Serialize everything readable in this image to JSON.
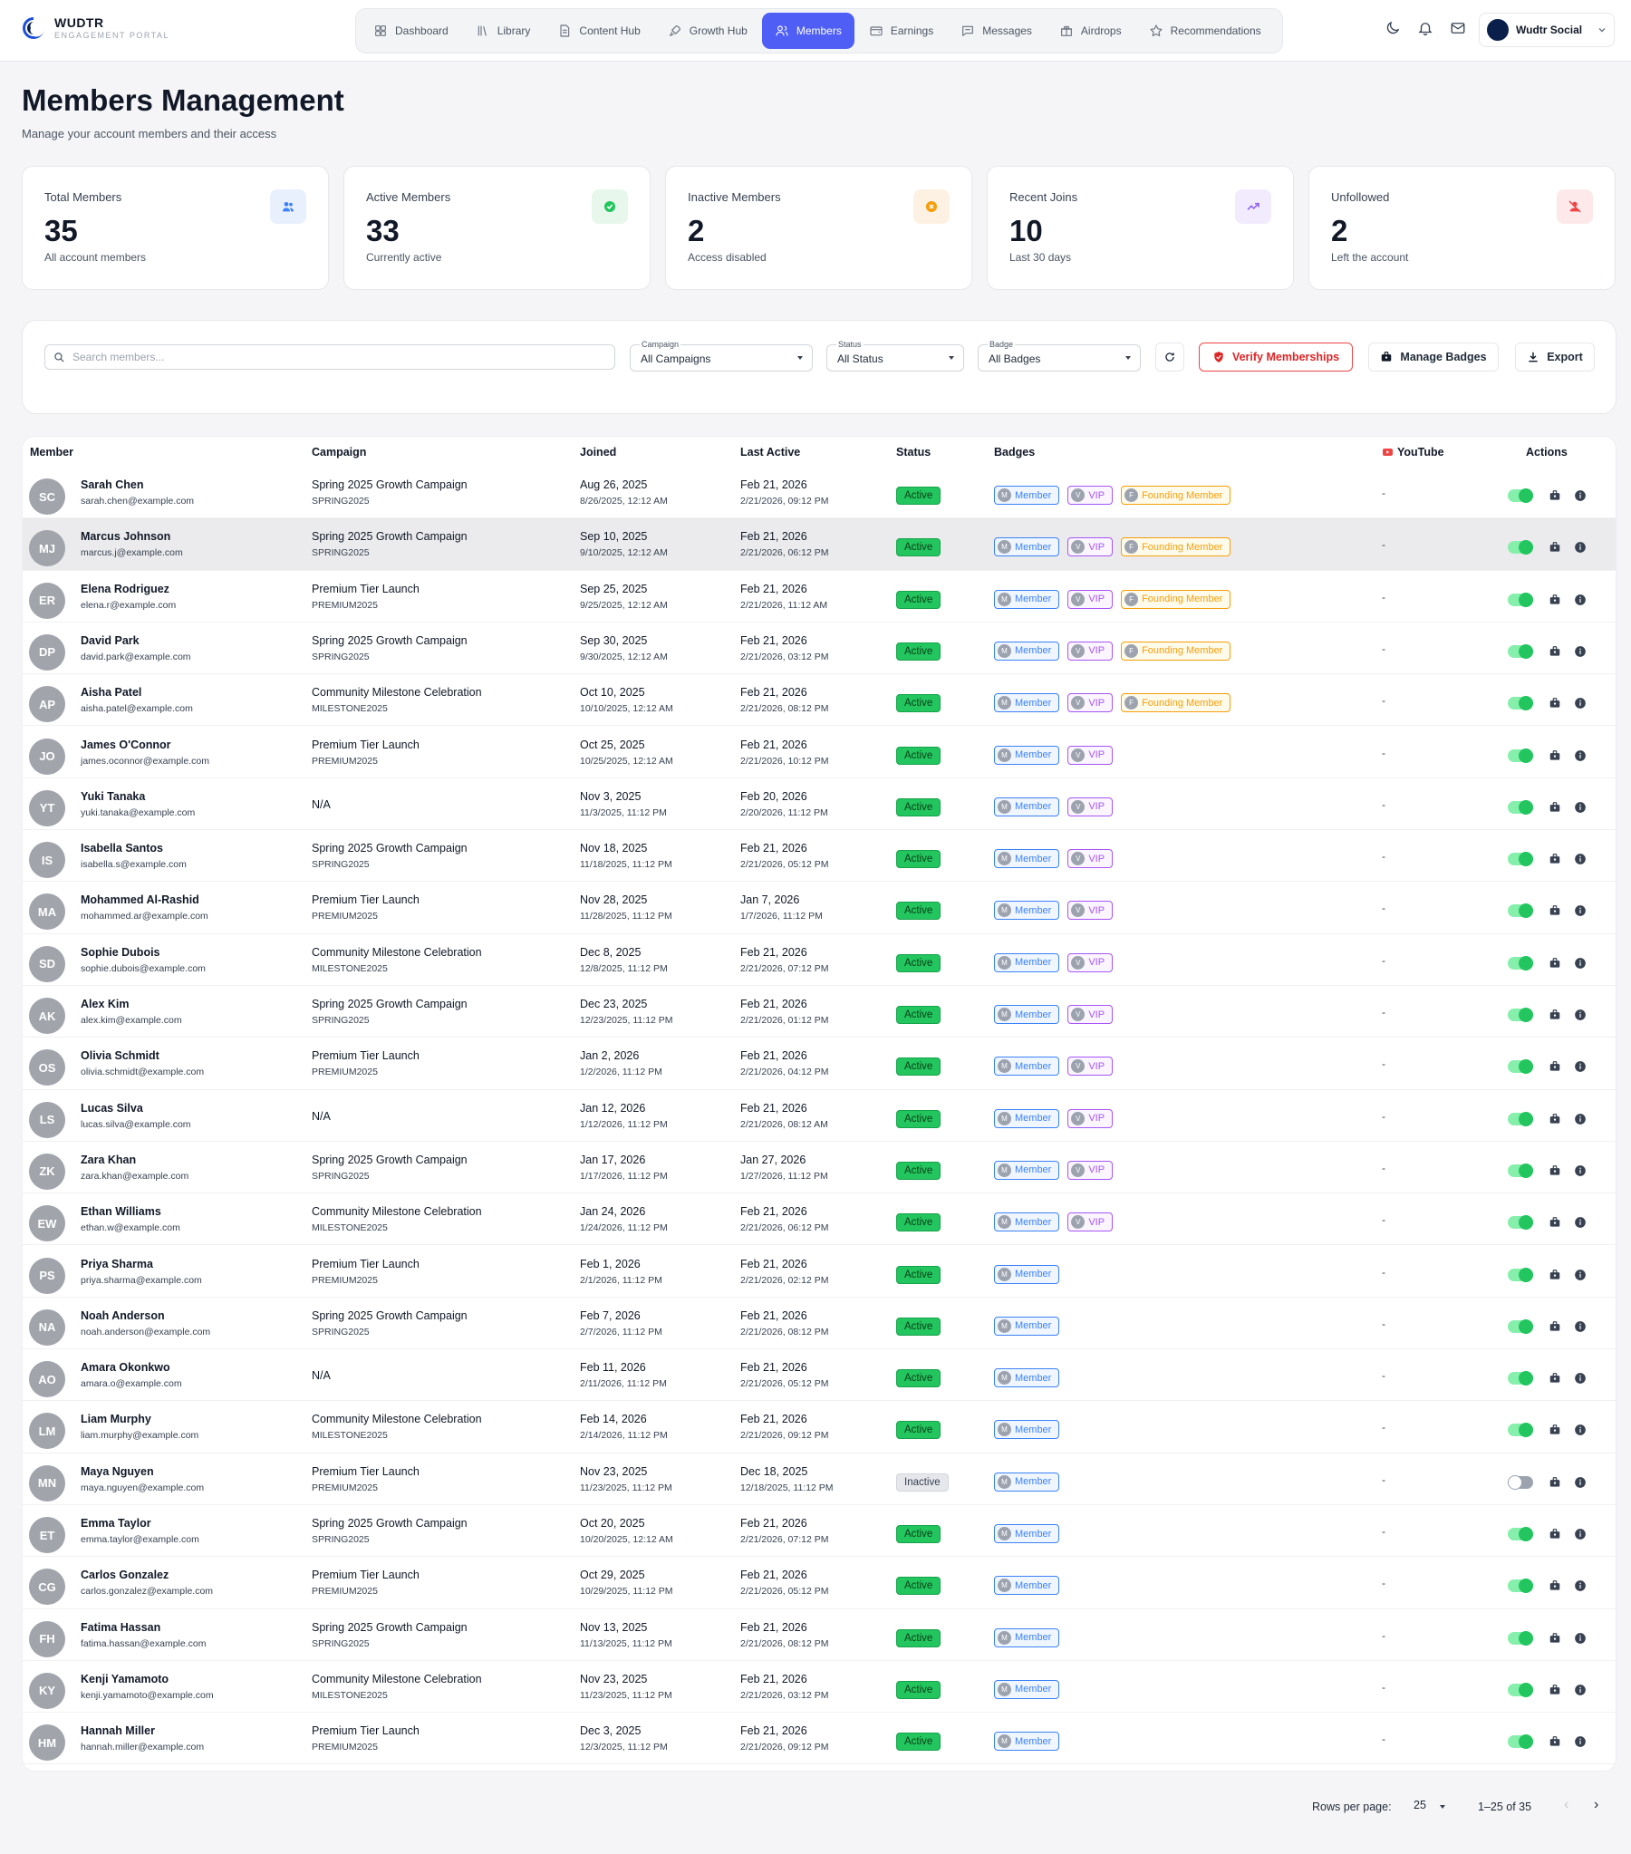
{
  "brand": {
    "name": "WUDTR",
    "subtitle": "ENGAGEMENT PORTAL"
  },
  "nav": [
    {
      "label": "Dashboard",
      "icon": "grid-icon",
      "active": false
    },
    {
      "label": "Library",
      "icon": "library-icon",
      "active": false
    },
    {
      "label": "Content Hub",
      "icon": "document-icon",
      "active": false
    },
    {
      "label": "Growth Hub",
      "icon": "rocket-icon",
      "active": false
    },
    {
      "label": "Members",
      "icon": "users-icon",
      "active": true
    },
    {
      "label": "Earnings",
      "icon": "wallet-icon",
      "active": false
    },
    {
      "label": "Messages",
      "icon": "chat-icon",
      "active": false
    },
    {
      "label": "Airdrops",
      "icon": "gift-icon",
      "active": false
    },
    {
      "label": "Recommendations",
      "icon": "star-icon",
      "active": false
    }
  ],
  "profile": {
    "name": "Wudtr Social"
  },
  "page": {
    "title": "Members Management",
    "subtitle": "Manage your account members and their access"
  },
  "stats": [
    {
      "label": "Total Members",
      "value": "35",
      "desc": "All account members",
      "icon": "users-icon",
      "bg": "#e8effd",
      "fg": "#3b82f6"
    },
    {
      "label": "Active Members",
      "value": "33",
      "desc": "Currently active",
      "icon": "check-circle-icon",
      "bg": "#e7f7ec",
      "fg": "#22c55e"
    },
    {
      "label": "Inactive Members",
      "value": "2",
      "desc": "Access disabled",
      "icon": "x-circle-icon",
      "bg": "#fdf1e3",
      "fg": "#f59e0b"
    },
    {
      "label": "Recent Joins",
      "value": "10",
      "desc": "Last 30 days",
      "icon": "trending-up-icon",
      "bg": "#f1ebfd",
      "fg": "#8b5cf6"
    },
    {
      "label": "Unfollowed",
      "value": "2",
      "desc": "Left the account",
      "icon": "user-off-icon",
      "bg": "#fde8ea",
      "fg": "#ef4444"
    }
  ],
  "filters": {
    "search_placeholder": "Search members...",
    "campaign": {
      "label": "Campaign",
      "value": "All Campaigns"
    },
    "status": {
      "label": "Status",
      "value": "All Status"
    },
    "badge": {
      "label": "Badge",
      "value": "All Badges"
    },
    "verify_label": "Verify Memberships",
    "manage_badges_label": "Manage Badges",
    "export_label": "Export"
  },
  "table": {
    "headers": {
      "member": "Member",
      "campaign": "Campaign",
      "joined": "Joined",
      "last_active": "Last Active",
      "status": "Status",
      "badges": "Badges",
      "youtube": "YouTube",
      "actions": "Actions"
    },
    "badge_labels": {
      "member": "Member",
      "vip": "VIP",
      "founder": "Founding Member"
    },
    "rows": [
      {
        "initials": "SC",
        "name": "Sarah Chen",
        "email": "sarah.chen@example.com",
        "campaign": "Spring 2025 Growth Campaign",
        "code": "SPRING2025",
        "joined": "Aug 26, 2025",
        "joined_full": "8/26/2025, 12:12 AM",
        "last": "Feb 21, 2026",
        "last_full": "2/21/2026, 09:12 PM",
        "status": "Active",
        "badges": [
          "member",
          "vip",
          "founder"
        ],
        "youtube": "-",
        "enabled": true
      },
      {
        "initials": "MJ",
        "name": "Marcus Johnson",
        "email": "marcus.j@example.com",
        "campaign": "Spring 2025 Growth Campaign",
        "code": "SPRING2025",
        "joined": "Sep 10, 2025",
        "joined_full": "9/10/2025, 12:12 AM",
        "last": "Feb 21, 2026",
        "last_full": "2/21/2026, 06:12 PM",
        "status": "Active",
        "badges": [
          "member",
          "vip",
          "founder"
        ],
        "youtube": "-",
        "enabled": true
      },
      {
        "initials": "ER",
        "name": "Elena Rodriguez",
        "email": "elena.r@example.com",
        "campaign": "Premium Tier Launch",
        "code": "PREMIUM2025",
        "joined": "Sep 25, 2025",
        "joined_full": "9/25/2025, 12:12 AM",
        "last": "Feb 21, 2026",
        "last_full": "2/21/2026, 11:12 AM",
        "status": "Active",
        "badges": [
          "member",
          "vip",
          "founder"
        ],
        "youtube": "-",
        "enabled": true
      },
      {
        "initials": "DP",
        "name": "David Park",
        "email": "david.park@example.com",
        "campaign": "Spring 2025 Growth Campaign",
        "code": "SPRING2025",
        "joined": "Sep 30, 2025",
        "joined_full": "9/30/2025, 12:12 AM",
        "last": "Feb 21, 2026",
        "last_full": "2/21/2026, 03:12 PM",
        "status": "Active",
        "badges": [
          "member",
          "vip",
          "founder"
        ],
        "youtube": "-",
        "enabled": true
      },
      {
        "initials": "AP",
        "name": "Aisha Patel",
        "email": "aisha.patel@example.com",
        "campaign": "Community Milestone Celebration",
        "code": "MILESTONE2025",
        "joined": "Oct 10, 2025",
        "joined_full": "10/10/2025, 12:12 AM",
        "last": "Feb 21, 2026",
        "last_full": "2/21/2026, 08:12 PM",
        "status": "Active",
        "badges": [
          "member",
          "vip",
          "founder"
        ],
        "youtube": "-",
        "enabled": true
      },
      {
        "initials": "JO",
        "name": "James O'Connor",
        "email": "james.oconnor@example.com",
        "campaign": "Premium Tier Launch",
        "code": "PREMIUM2025",
        "joined": "Oct 25, 2025",
        "joined_full": "10/25/2025, 12:12 AM",
        "last": "Feb 21, 2026",
        "last_full": "2/21/2026, 10:12 PM",
        "status": "Active",
        "badges": [
          "member",
          "vip"
        ],
        "youtube": "-",
        "enabled": true
      },
      {
        "initials": "YT",
        "name": "Yuki Tanaka",
        "email": "yuki.tanaka@example.com",
        "campaign": "N/A",
        "code": "",
        "joined": "Nov 3, 2025",
        "joined_full": "11/3/2025, 11:12 PM",
        "last": "Feb 20, 2026",
        "last_full": "2/20/2026, 11:12 PM",
        "status": "Active",
        "badges": [
          "member",
          "vip"
        ],
        "youtube": "-",
        "enabled": true
      },
      {
        "initials": "IS",
        "name": "Isabella Santos",
        "email": "isabella.s@example.com",
        "campaign": "Spring 2025 Growth Campaign",
        "code": "SPRING2025",
        "joined": "Nov 18, 2025",
        "joined_full": "11/18/2025, 11:12 PM",
        "last": "Feb 21, 2026",
        "last_full": "2/21/2026, 05:12 PM",
        "status": "Active",
        "badges": [
          "member",
          "vip"
        ],
        "youtube": "-",
        "enabled": true
      },
      {
        "initials": "MA",
        "name": "Mohammed Al-Rashid",
        "email": "mohammed.ar@example.com",
        "campaign": "Premium Tier Launch",
        "code": "PREMIUM2025",
        "joined": "Nov 28, 2025",
        "joined_full": "11/28/2025, 11:12 PM",
        "last": "Jan 7, 2026",
        "last_full": "1/7/2026, 11:12 PM",
        "status": "Active",
        "badges": [
          "member",
          "vip"
        ],
        "youtube": "-",
        "enabled": true
      },
      {
        "initials": "SD",
        "name": "Sophie Dubois",
        "email": "sophie.dubois@example.com",
        "campaign": "Community Milestone Celebration",
        "code": "MILESTONE2025",
        "joined": "Dec 8, 2025",
        "joined_full": "12/8/2025, 11:12 PM",
        "last": "Feb 21, 2026",
        "last_full": "2/21/2026, 07:12 PM",
        "status": "Active",
        "badges": [
          "member",
          "vip"
        ],
        "youtube": "-",
        "enabled": true
      },
      {
        "initials": "AK",
        "name": "Alex Kim",
        "email": "alex.kim@example.com",
        "campaign": "Spring 2025 Growth Campaign",
        "code": "SPRING2025",
        "joined": "Dec 23, 2025",
        "joined_full": "12/23/2025, 11:12 PM",
        "last": "Feb 21, 2026",
        "last_full": "2/21/2026, 01:12 PM",
        "status": "Active",
        "badges": [
          "member",
          "vip"
        ],
        "youtube": "-",
        "enabled": true
      },
      {
        "initials": "OS",
        "name": "Olivia Schmidt",
        "email": "olivia.schmidt@example.com",
        "campaign": "Premium Tier Launch",
        "code": "PREMIUM2025",
        "joined": "Jan 2, 2026",
        "joined_full": "1/2/2026, 11:12 PM",
        "last": "Feb 21, 2026",
        "last_full": "2/21/2026, 04:12 PM",
        "status": "Active",
        "badges": [
          "member",
          "vip"
        ],
        "youtube": "-",
        "enabled": true
      },
      {
        "initials": "LS",
        "name": "Lucas Silva",
        "email": "lucas.silva@example.com",
        "campaign": "N/A",
        "code": "",
        "joined": "Jan 12, 2026",
        "joined_full": "1/12/2026, 11:12 PM",
        "last": "Feb 21, 2026",
        "last_full": "2/21/2026, 08:12 AM",
        "status": "Active",
        "badges": [
          "member",
          "vip"
        ],
        "youtube": "-",
        "enabled": true
      },
      {
        "initials": "ZK",
        "name": "Zara Khan",
        "email": "zara.khan@example.com",
        "campaign": "Spring 2025 Growth Campaign",
        "code": "SPRING2025",
        "joined": "Jan 17, 2026",
        "joined_full": "1/17/2026, 11:12 PM",
        "last": "Jan 27, 2026",
        "last_full": "1/27/2026, 11:12 PM",
        "status": "Active",
        "badges": [
          "member",
          "vip"
        ],
        "youtube": "-",
        "enabled": true
      },
      {
        "initials": "EW",
        "name": "Ethan Williams",
        "email": "ethan.w@example.com",
        "campaign": "Community Milestone Celebration",
        "code": "MILESTONE2025",
        "joined": "Jan 24, 2026",
        "joined_full": "1/24/2026, 11:12 PM",
        "last": "Feb 21, 2026",
        "last_full": "2/21/2026, 06:12 PM",
        "status": "Active",
        "badges": [
          "member",
          "vip"
        ],
        "youtube": "-",
        "enabled": true
      },
      {
        "initials": "PS",
        "name": "Priya Sharma",
        "email": "priya.sharma@example.com",
        "campaign": "Premium Tier Launch",
        "code": "PREMIUM2025",
        "joined": "Feb 1, 2026",
        "joined_full": "2/1/2026, 11:12 PM",
        "last": "Feb 21, 2026",
        "last_full": "2/21/2026, 02:12 PM",
        "status": "Active",
        "badges": [
          "member"
        ],
        "youtube": "-",
        "enabled": true
      },
      {
        "initials": "NA",
        "name": "Noah Anderson",
        "email": "noah.anderson@example.com",
        "campaign": "Spring 2025 Growth Campaign",
        "code": "SPRING2025",
        "joined": "Feb 7, 2026",
        "joined_full": "2/7/2026, 11:12 PM",
        "last": "Feb 21, 2026",
        "last_full": "2/21/2026, 08:12 PM",
        "status": "Active",
        "badges": [
          "member"
        ],
        "youtube": "-",
        "enabled": true
      },
      {
        "initials": "AO",
        "name": "Amara Okonkwo",
        "email": "amara.o@example.com",
        "campaign": "N/A",
        "code": "",
        "joined": "Feb 11, 2026",
        "joined_full": "2/11/2026, 11:12 PM",
        "last": "Feb 21, 2026",
        "last_full": "2/21/2026, 05:12 PM",
        "status": "Active",
        "badges": [
          "member"
        ],
        "youtube": "-",
        "enabled": true
      },
      {
        "initials": "LM",
        "name": "Liam Murphy",
        "email": "liam.murphy@example.com",
        "campaign": "Community Milestone Celebration",
        "code": "MILESTONE2025",
        "joined": "Feb 14, 2026",
        "joined_full": "2/14/2026, 11:12 PM",
        "last": "Feb 21, 2026",
        "last_full": "2/21/2026, 09:12 PM",
        "status": "Active",
        "badges": [
          "member"
        ],
        "youtube": "-",
        "enabled": true
      },
      {
        "initials": "MN",
        "name": "Maya Nguyen",
        "email": "maya.nguyen@example.com",
        "campaign": "Premium Tier Launch",
        "code": "PREMIUM2025",
        "joined": "Nov 23, 2025",
        "joined_full": "11/23/2025, 11:12 PM",
        "last": "Dec 18, 2025",
        "last_full": "12/18/2025, 11:12 PM",
        "status": "Inactive",
        "badges": [
          "member"
        ],
        "youtube": "-",
        "enabled": false
      },
      {
        "initials": "ET",
        "name": "Emma Taylor",
        "email": "emma.taylor@example.com",
        "campaign": "Spring 2025 Growth Campaign",
        "code": "SPRING2025",
        "joined": "Oct 20, 2025",
        "joined_full": "10/20/2025, 12:12 AM",
        "last": "Feb 21, 2026",
        "last_full": "2/21/2026, 07:12 PM",
        "status": "Active",
        "badges": [
          "member"
        ],
        "youtube": "-",
        "enabled": true
      },
      {
        "initials": "CG",
        "name": "Carlos Gonzalez",
        "email": "carlos.gonzalez@example.com",
        "campaign": "Premium Tier Launch",
        "code": "PREMIUM2025",
        "joined": "Oct 29, 2025",
        "joined_full": "10/29/2025, 11:12 PM",
        "last": "Feb 21, 2026",
        "last_full": "2/21/2026, 05:12 PM",
        "status": "Active",
        "badges": [
          "member"
        ],
        "youtube": "-",
        "enabled": true
      },
      {
        "initials": "FH",
        "name": "Fatima Hassan",
        "email": "fatima.hassan@example.com",
        "campaign": "Spring 2025 Growth Campaign",
        "code": "SPRING2025",
        "joined": "Nov 13, 2025",
        "joined_full": "11/13/2025, 11:12 PM",
        "last": "Feb 21, 2026",
        "last_full": "2/21/2026, 08:12 PM",
        "status": "Active",
        "badges": [
          "member"
        ],
        "youtube": "-",
        "enabled": true
      },
      {
        "initials": "KY",
        "name": "Kenji Yamamoto",
        "email": "kenji.yamamoto@example.com",
        "campaign": "Community Milestone Celebration",
        "code": "MILESTONE2025",
        "joined": "Nov 23, 2025",
        "joined_full": "11/23/2025, 11:12 PM",
        "last": "Feb 21, 2026",
        "last_full": "2/21/2026, 03:12 PM",
        "status": "Active",
        "badges": [
          "member"
        ],
        "youtube": "-",
        "enabled": true
      },
      {
        "initials": "HM",
        "name": "Hannah Miller",
        "email": "hannah.miller@example.com",
        "campaign": "Premium Tier Launch",
        "code": "PREMIUM2025",
        "joined": "Dec 3, 2025",
        "joined_full": "12/3/2025, 11:12 PM",
        "last": "Feb 21, 2026",
        "last_full": "2/21/2026, 09:12 PM",
        "status": "Active",
        "badges": [
          "member"
        ],
        "youtube": "-",
        "enabled": true
      }
    ]
  },
  "pagination": {
    "rows_label": "Rows per page:",
    "rows_value": "25",
    "range": "1–25 of 35"
  }
}
